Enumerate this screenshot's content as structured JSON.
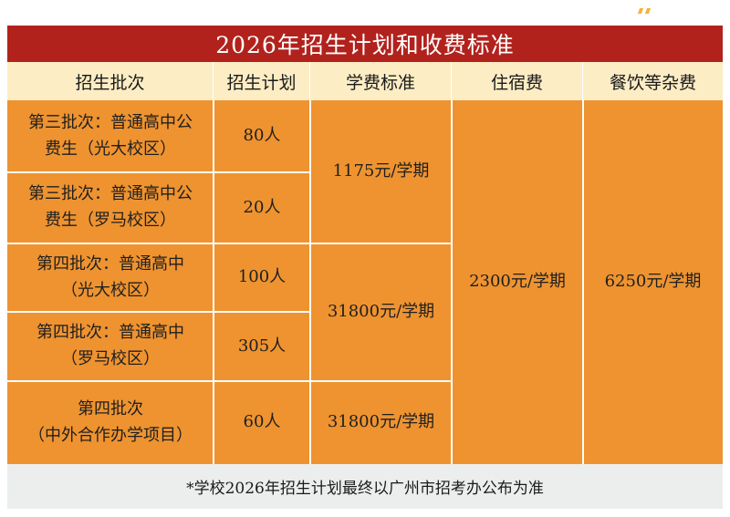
{
  "title": "2026年招生计划和收费标准",
  "headers": {
    "batch": "招生批次",
    "plan": "招生计划",
    "tuition": "学费标准",
    "lodging": "住宿费",
    "meals": "餐饮等杂费"
  },
  "rows": [
    {
      "batch_line1": "第三批次：普通高中公",
      "batch_line2": "费生（光大校区）",
      "plan": "80人"
    },
    {
      "batch_line1": "第三批次：普通高中公",
      "batch_line2": "费生（罗马校区）",
      "plan": "20人"
    },
    {
      "batch_line1": "第四批次：普通高中",
      "batch_line2": "（光大校区）",
      "plan": "100人"
    },
    {
      "batch_line1": "第四批次：普通高中",
      "batch_line2": "（罗马校区）",
      "plan": "305人"
    },
    {
      "batch_line1": "第四批次",
      "batch_line2": "（中外合作办学项目）",
      "plan": "60人"
    }
  ],
  "tuition": {
    "group1": "1175元/学期",
    "group2": "31800元/学期",
    "group3": "31800元/学期"
  },
  "lodging": "2300元/学期",
  "meals": "6250元/学期",
  "footnote": "*学校2026年招生计划最终以广州市招考办公布为准",
  "colors": {
    "title_bg": "#b2221d",
    "header_bg": "#fdedc4",
    "cell_bg": "#ee9330",
    "footer_bg": "#eceeed"
  }
}
